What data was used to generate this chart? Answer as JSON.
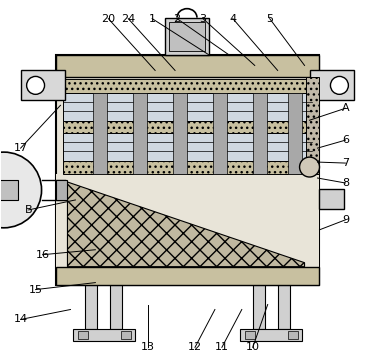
{
  "figure_size": [
    3.76,
    3.63
  ],
  "dpi": 100,
  "bg_color": "#ffffff",
  "line_color": "#000000",
  "body_fill": "#e8e4d8",
  "top_wall_fill": "#c8c0a0",
  "filter_gray": "#b0b0b0",
  "sand_fill": "#c8c0a0",
  "mesh_fill": "#b8b0a0",
  "bracket_fill": "#d8d8d8",
  "motor_fill": "#e8e8e8",
  "leg_fill": "#d0d0d0",
  "right_side_fill": "#c0b8a8",
  "label_fontsize": 8
}
